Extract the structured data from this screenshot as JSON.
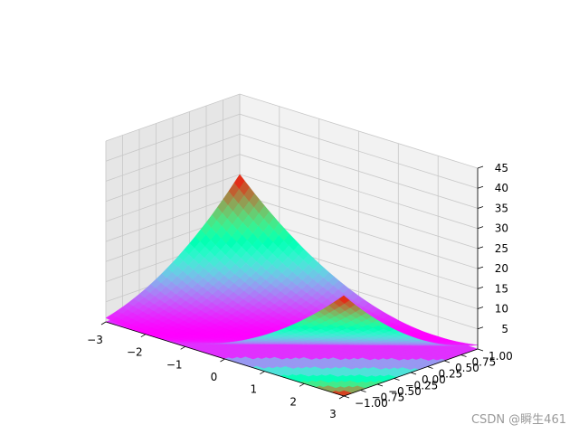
{
  "chart_data": {
    "type": "surface3d",
    "plot": "plot_surface over contourf projection (z offset at floor)",
    "colormap": "rainbow",
    "function_estimate": "z = (x - 2y)^2",
    "x": {
      "range": [
        -3,
        3
      ],
      "ticks": [
        -3,
        -2,
        -1,
        0,
        1,
        2,
        3
      ]
    },
    "y": {
      "range": [
        -1,
        1
      ],
      "ticks": [
        "-1.00",
        "-0.75",
        "-0.50",
        "-0.25",
        "0.00",
        "0.25",
        "0.50",
        "0.75",
        "1.00"
      ]
    },
    "z": {
      "range": [
        0,
        45
      ],
      "ticks": [
        5,
        10,
        15,
        20,
        25,
        30,
        35,
        40,
        45
      ]
    },
    "grid": true,
    "corner_values": [
      {
        "x": -3,
        "y": 1,
        "z": 25
      },
      {
        "x": -3,
        "y": -1,
        "z": 1
      },
      {
        "x": 3,
        "y": -1,
        "z": 25
      },
      {
        "x": 3,
        "y": 1,
        "z": 1
      }
    ]
  },
  "watermark": "CSDN @瞬生461",
  "colors": {
    "pane_back": "#f2f2f2",
    "pane_side": "#e6e6e6",
    "pane_floor": "#ebebeb",
    "grid": "#c8c8c8"
  }
}
